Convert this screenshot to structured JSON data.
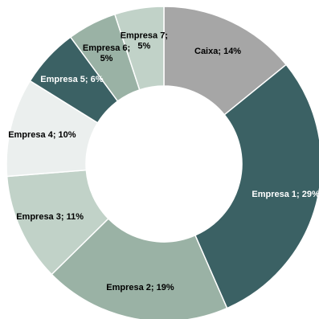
{
  "chart_data": {
    "type": "pie",
    "variant": "donut",
    "title": "",
    "legend": "none",
    "slices": [
      {
        "label": "Caixa; 14%",
        "value": 14,
        "color": "#A6A6A6",
        "label_color": "#000000"
      },
      {
        "label": "Empresa 1; 29%",
        "value": 29,
        "color": "#3B6164",
        "label_color": "#FFFFFF"
      },
      {
        "label": "Empresa 2; 19%",
        "value": 19,
        "color": "#9AB2A5",
        "label_color": "#000000"
      },
      {
        "label": "Empresa 3; 11%",
        "value": 11,
        "color": "#C1D2C8",
        "label_color": "#000000"
      },
      {
        "label": "Empresa 4; 10%",
        "value": 10,
        "color": "#EBEFEE",
        "label_color": "#000000"
      },
      {
        "label": "Empresa 5; 6%",
        "value": 6,
        "color": "#3B6164",
        "label_color": "#FFFFFF"
      },
      {
        "label": "Empresa 6; 5%",
        "lines": [
          "Empresa 6;",
          "5%"
        ],
        "value": 5,
        "color": "#9AB2A5",
        "label_color": "#000000"
      },
      {
        "label": "Empresa 7; 5%",
        "lines": [
          "Empresa 7;",
          "5%"
        ],
        "value": 5,
        "color": "#C1D2C8",
        "label_color": "#000000"
      }
    ]
  }
}
